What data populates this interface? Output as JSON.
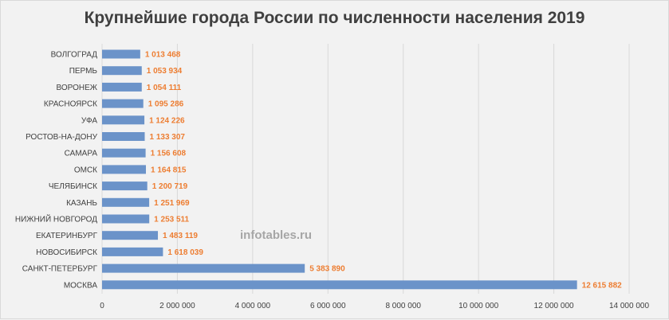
{
  "watermark": "infotables.ru",
  "chart_data": {
    "type": "bar",
    "orientation": "horizontal",
    "title": "Крупнейшие города России по численности населения 2019",
    "categories": [
      "ВОЛГОГРАД",
      "ПЕРМЬ",
      "ВОРОНЕЖ",
      "КРАСНОЯРСК",
      "УФА",
      "РОСТОВ-НА-ДОНУ",
      "САМАРА",
      "ОМСК",
      "ЧЕЛЯБИНСК",
      "КАЗАНЬ",
      "НИЖНИЙ НОВГОРОД",
      "ЕКАТЕРИНБУРГ",
      "НОВОСИБИРСК",
      "САНКТ-ПЕТЕРБУРГ",
      "МОСКВА"
    ],
    "values": [
      1013468,
      1053934,
      1054111,
      1095286,
      1124226,
      1133307,
      1156608,
      1164815,
      1200719,
      1251969,
      1253511,
      1483119,
      1618039,
      5383890,
      12615882
    ],
    "value_labels": [
      "1 013 468",
      "1 053 934",
      "1 054 111",
      "1 095 286",
      "1 124 226",
      "1 133 307",
      "1 156 608",
      "1 164 815",
      "1 200 719",
      "1 251 969",
      "1 253 511",
      "1 483 119",
      "1 618 039",
      "5 383 890",
      "12 615 882"
    ],
    "xlim": [
      0,
      14000000
    ],
    "x_ticks": [
      0,
      2000000,
      4000000,
      6000000,
      8000000,
      10000000,
      12000000,
      14000000
    ],
    "x_tick_labels": [
      "0",
      "2 000 000",
      "4 000 000",
      "6 000 000",
      "8 000 000",
      "10 000 000",
      "12 000 000",
      "14 000 000"
    ],
    "grid": true,
    "bar_color": "#6b93c9",
    "label_color": "#ed7d31",
    "axis_text_color": "#404040",
    "grid_color": "#d9d9d9"
  }
}
